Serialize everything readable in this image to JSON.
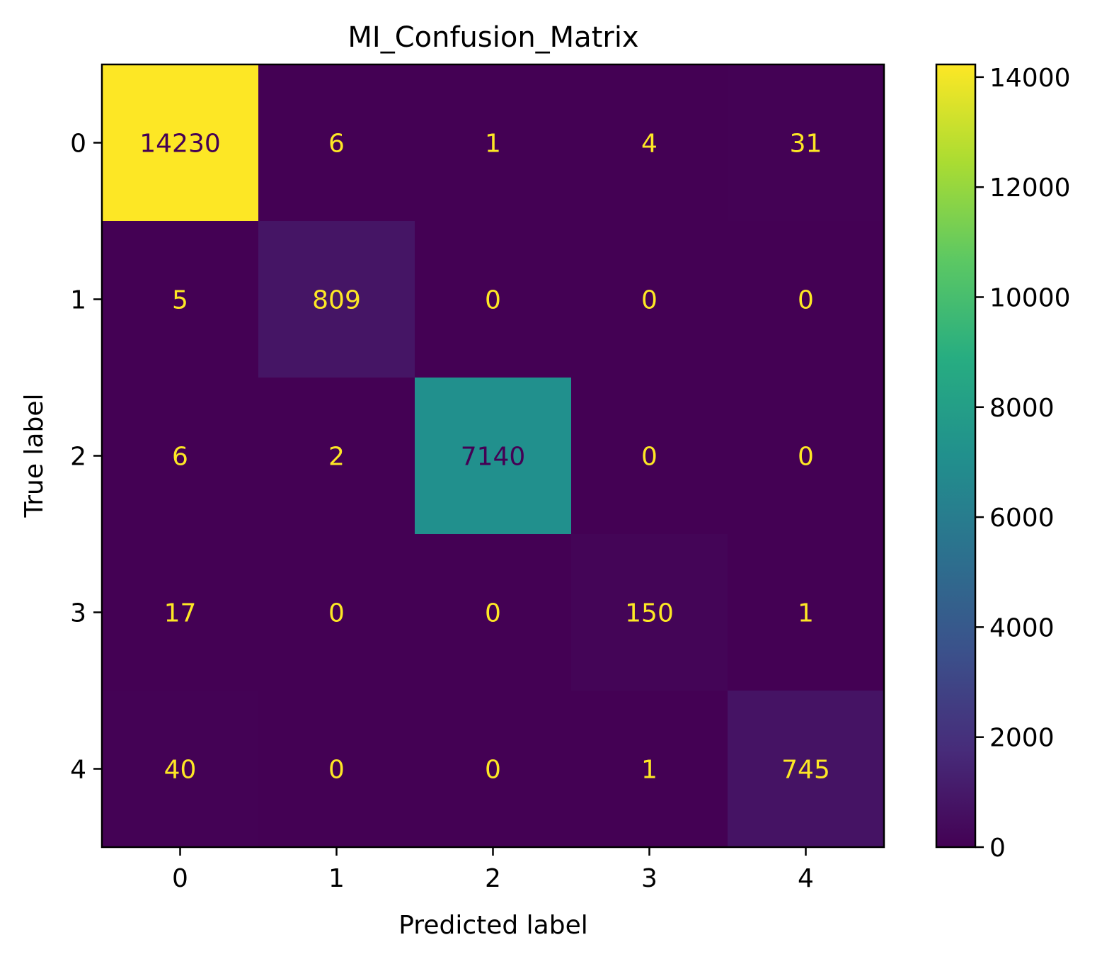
{
  "chart_data": {
    "type": "heatmap",
    "title": "MI_Confusion_Matrix",
    "xlabel": "Predicted label",
    "ylabel": "True label",
    "x_categories": [
      "0",
      "1",
      "2",
      "3",
      "4"
    ],
    "y_categories": [
      "0",
      "1",
      "2",
      "3",
      "4"
    ],
    "matrix": [
      [
        14230,
        6,
        1,
        4,
        31
      ],
      [
        5,
        809,
        0,
        0,
        0
      ],
      [
        6,
        2,
        7140,
        0,
        0
      ],
      [
        17,
        0,
        0,
        150,
        1
      ],
      [
        40,
        0,
        0,
        1,
        745
      ]
    ],
    "colormap": "viridis",
    "colorbar": {
      "range": [
        0,
        14230
      ],
      "ticks": [
        0,
        2000,
        4000,
        6000,
        8000,
        10000,
        12000,
        14000
      ],
      "tick_labels": [
        "0",
        "2000",
        "4000",
        "6000",
        "8000",
        "10000",
        "12000",
        "14000"
      ]
    },
    "annotation_colors": {
      "on_dark": "#fde725",
      "on_light": "#440154"
    },
    "grid": false
  }
}
